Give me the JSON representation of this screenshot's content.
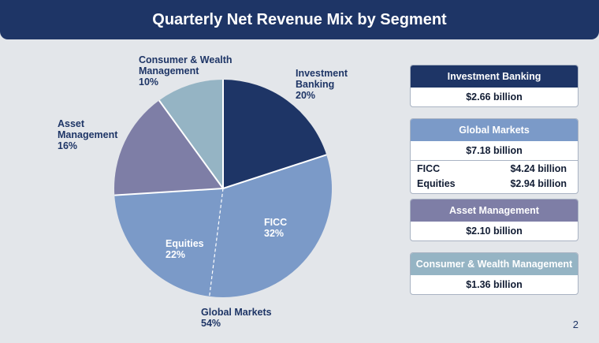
{
  "page_title": "Quarterly Net Revenue Mix by Segment",
  "page_number": "2",
  "chart_data": {
    "type": "pie",
    "title": "Quarterly Net Revenue Mix by Segment",
    "slices": [
      {
        "name": "Investment Banking",
        "line1": "Investment",
        "line2": "Banking",
        "pct_label": "20%",
        "value": 20,
        "color": "#1e3566"
      },
      {
        "name": "FICC",
        "line1": "FICC",
        "line2": "",
        "pct_label": "32%",
        "value": 32,
        "color": "#7b9ac8"
      },
      {
        "name": "Equities",
        "line1": "Equities",
        "line2": "",
        "pct_label": "22%",
        "value": 22,
        "color": "#7b9ac8"
      },
      {
        "name": "Asset Management",
        "line1": "Asset",
        "line2": "Management",
        "pct_label": "16%",
        "value": 16,
        "color": "#7e7ea6"
      },
      {
        "name": "Consumer & Wealth Management",
        "line1": "Consumer & Wealth",
        "line2": "Management",
        "pct_label": "10%",
        "value": 10,
        "color": "#95b4c4"
      }
    ],
    "group_label": {
      "name": "Global Markets",
      "pct_label": "54%"
    }
  },
  "cards": [
    {
      "title": "Investment Banking",
      "total": "$2.66 billion",
      "color": "#1e3566",
      "rows": []
    },
    {
      "title": "Global Markets",
      "total": "$7.18 billion",
      "color": "#7b9ac8",
      "rows": [
        {
          "label": "FICC",
          "value": "$4.24 billion"
        },
        {
          "label": "Equities",
          "value": "$2.94 billion"
        }
      ]
    },
    {
      "title": "Asset Management",
      "total": "$2.10 billion",
      "color": "#7e7ea6",
      "rows": []
    },
    {
      "title": "Consumer & Wealth Management",
      "total": "$1.36 billion",
      "color": "#95b4c4",
      "rows": []
    }
  ]
}
